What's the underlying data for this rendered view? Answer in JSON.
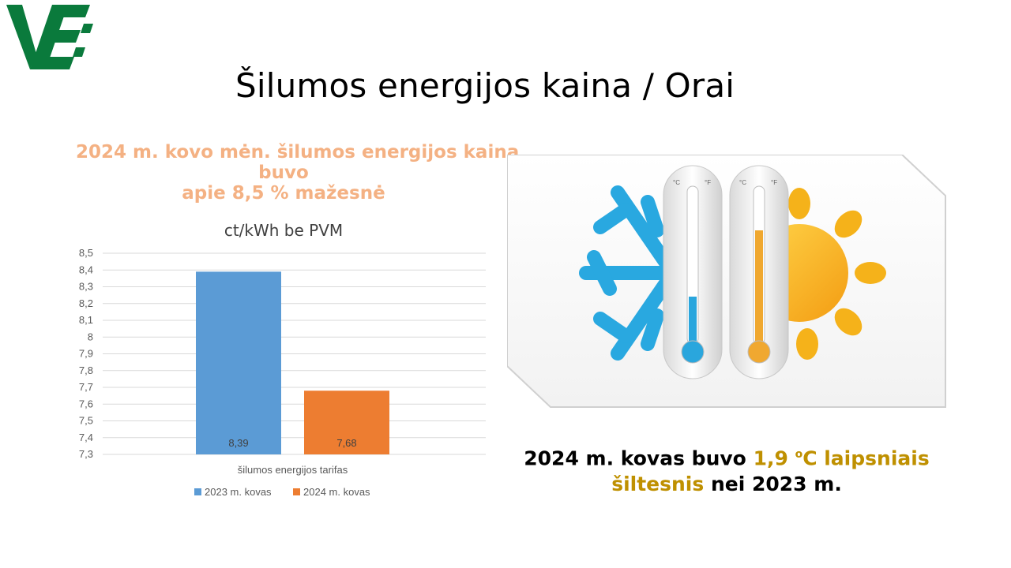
{
  "page": {
    "title": "Šilumos energijos kaina / Orai"
  },
  "headline": {
    "line1": "2024 m. kovo mėn. šilumos energijos kaina",
    "line2": "buvo",
    "line3": "apie 8,5 % mažesnė"
  },
  "chart_data": {
    "type": "bar",
    "title": "ct/kWh be PVM",
    "categories": [
      "šilumos energijos tarifas"
    ],
    "xlabel": "šilumos energijos tarifas",
    "ylabel": "",
    "ylim": [
      7.3,
      8.5
    ],
    "yticks": [
      "8,5",
      "8,4",
      "8,3",
      "8,2",
      "8,1",
      "8",
      "7,9",
      "7,8",
      "7,7",
      "7,6",
      "7,5",
      "7,4",
      "7,3"
    ],
    "grid": true,
    "legend_position": "bottom",
    "series": [
      {
        "name": "2023 m. kovas",
        "values": [
          8.39
        ],
        "label": "8,39",
        "color": "#5b9bd5"
      },
      {
        "name": "2024 m. kovas",
        "values": [
          7.68
        ],
        "label": "7,68",
        "color": "#ed7d31"
      }
    ]
  },
  "image": {
    "thermometer_units": [
      "°C",
      "°F"
    ]
  },
  "bottom": {
    "part1": "2024 m. kovas buvo ",
    "highlight1": "1,9 ",
    "sup": "o",
    "highlight2": "C laipsniais",
    "highlight3": "šiltesnis",
    "part2": " nei 2023 m."
  },
  "colors": {
    "logo_green": "#0a7a3c",
    "headline_orange": "#f4b183",
    "highlight_gold": "#bf9000"
  }
}
